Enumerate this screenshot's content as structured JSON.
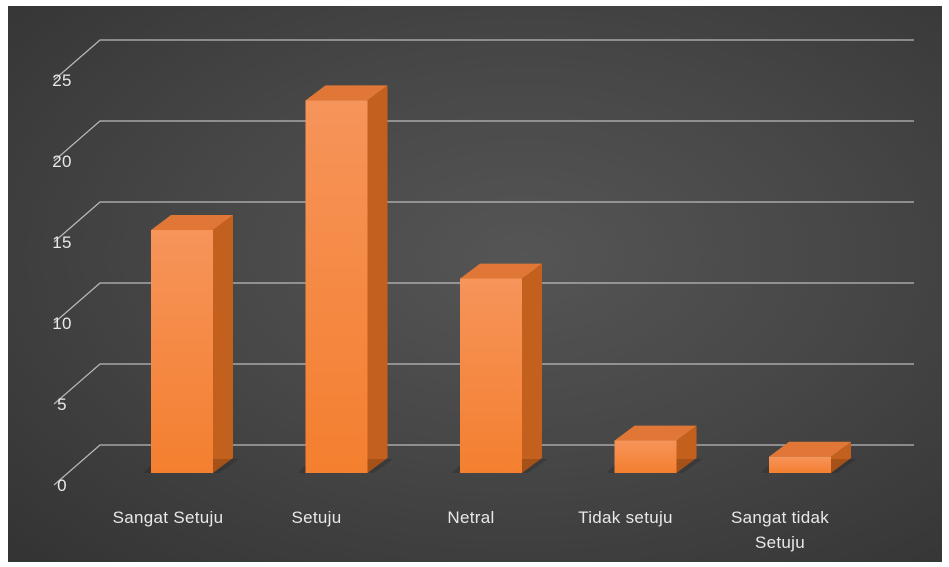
{
  "chart_data": {
    "type": "bar",
    "title": "",
    "xlabel": "",
    "ylabel": "",
    "categories": [
      "Sangat Setuju",
      "Setuju",
      "Netral",
      "Tidak setuju",
      "Sangat tidak Setuju"
    ],
    "category_label_lines": [
      [
        "Sangat Setuju"
      ],
      [
        "Setuju"
      ],
      [
        "Netral"
      ],
      [
        "Tidak setuju"
      ],
      [
        "Sangat tidak",
        "Setuju"
      ]
    ],
    "values": [
      15,
      23,
      12,
      2,
      1
    ],
    "ylim": [
      0,
      25
    ],
    "yticks": [
      0,
      5,
      10,
      15,
      20,
      25
    ],
    "grid": true,
    "legend": "none",
    "colors": {
      "background": "#404040",
      "gridline": "#d0d0d0",
      "bar_front": "#f47f2f",
      "bar_front_top": "#f6945a",
      "bar_side": "#c4601d",
      "bar_top": "#e07736",
      "text": "#e8e8e8"
    }
  }
}
